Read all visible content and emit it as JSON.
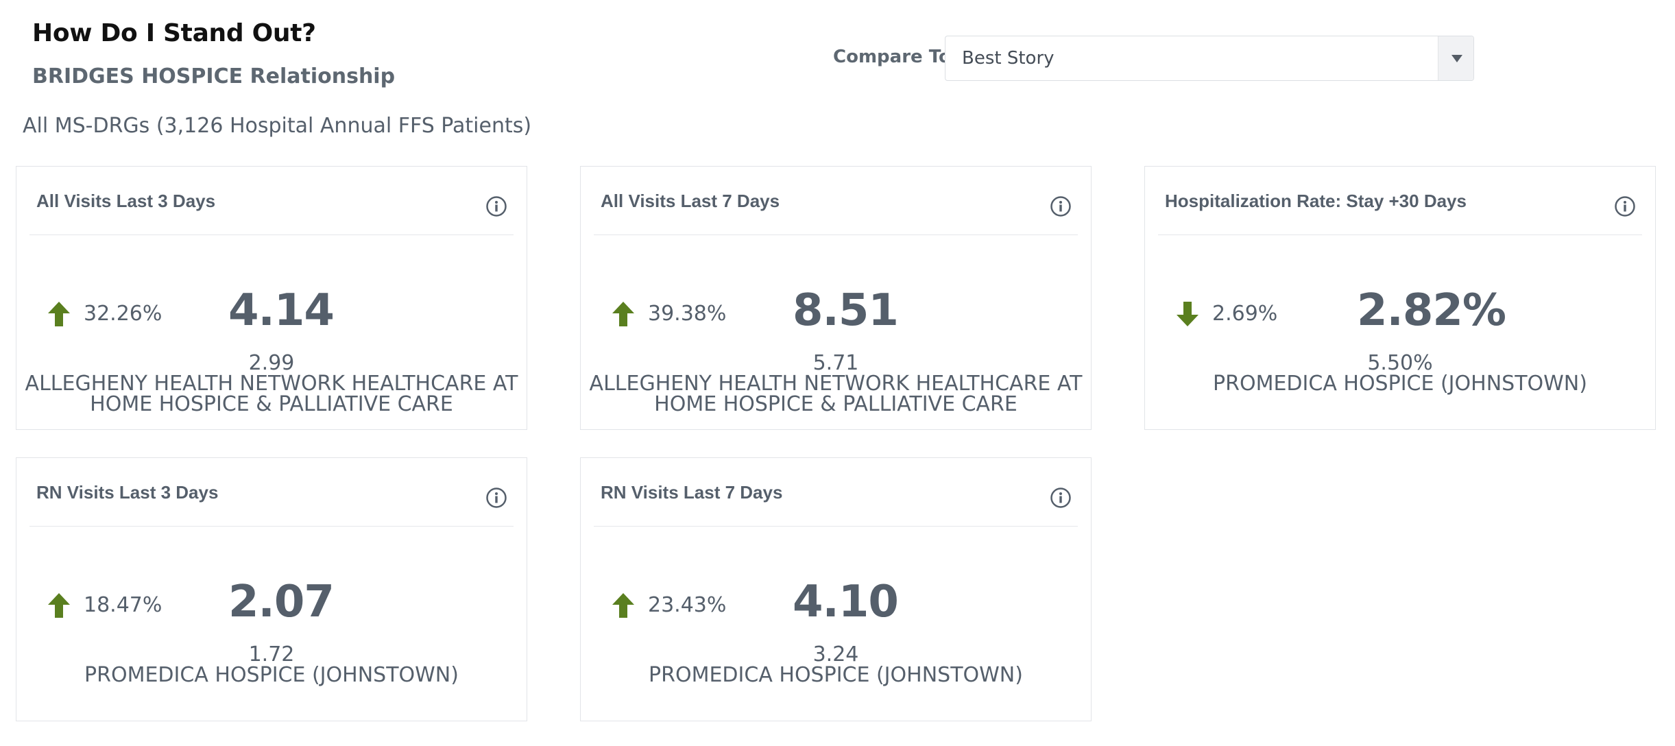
{
  "header": {
    "title": "How Do I Stand Out?",
    "subtitle": "BRIDGES HOSPICE Relationship",
    "scope": "All MS-DRGs (3,126 Hospital Annual FFS Patients)"
  },
  "compare": {
    "label": "Compare To:",
    "selected": "Best Story"
  },
  "colors": {
    "trend_up": "#5a7f1f",
    "trend_down": "#5a7f1f",
    "text": "#555f6b"
  },
  "cards": [
    {
      "title": "All Visits Last 3 Days",
      "trend": "up",
      "trend_icon": "arrow-up-icon",
      "change": "32.26%",
      "value": "4.14",
      "benchmark_value": "2.99",
      "benchmark_name": "ALLEGHENY HEALTH NETWORK HEALTHCARE AT HOME HOSPICE & PALLIATIVE CARE"
    },
    {
      "title": "All Visits Last 7 Days",
      "trend": "up",
      "trend_icon": "arrow-up-icon",
      "change": "39.38%",
      "value": "8.51",
      "benchmark_value": "5.71",
      "benchmark_name": "ALLEGHENY HEALTH NETWORK HEALTHCARE AT HOME HOSPICE & PALLIATIVE CARE"
    },
    {
      "title": "Hospitalization Rate: Stay +30 Days",
      "trend": "down",
      "trend_icon": "arrow-down-icon",
      "change": "2.69%",
      "value": "2.82%",
      "benchmark_value": "5.50%",
      "benchmark_name": "PROMEDICA HOSPICE (JOHNSTOWN)"
    },
    {
      "title": "RN Visits Last 3 Days",
      "trend": "up",
      "trend_icon": "arrow-up-icon",
      "change": "18.47%",
      "value": "2.07",
      "benchmark_value": "1.72",
      "benchmark_name": "PROMEDICA HOSPICE (JOHNSTOWN)"
    },
    {
      "title": "RN Visits Last 7 Days",
      "trend": "up",
      "trend_icon": "arrow-up-icon",
      "change": "23.43%",
      "value": "4.10",
      "benchmark_value": "3.24",
      "benchmark_name": "PROMEDICA HOSPICE (JOHNSTOWN)"
    }
  ]
}
